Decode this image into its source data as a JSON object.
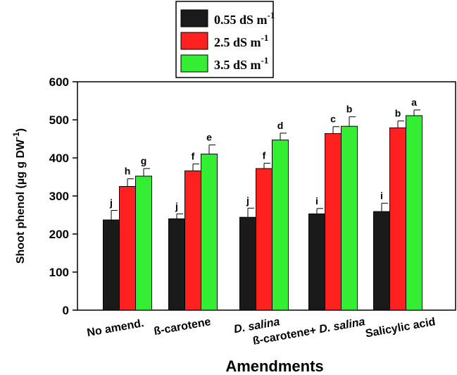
{
  "chart_data": {
    "type": "bar",
    "title": "",
    "xlabel": "Amendments",
    "ylabel": "Shoot phenol (µg  g DW",
    "ylabel_superscript": "-1",
    "ylim": [
      0,
      600
    ],
    "yticks": [
      "0",
      "100",
      "200",
      "300",
      "400",
      "500",
      "600"
    ],
    "legend_position": "top-center",
    "categories": [
      "No amend.",
      "ß-carotene",
      "D. salina",
      "ß-carotene+ D. salina",
      "Salicylic acid"
    ],
    "series": [
      {
        "name": "0.55 dS m",
        "name_superscript": "-1",
        "color": "#1a1a1a",
        "values": [
          237,
          240,
          244,
          253,
          259
        ],
        "errors": [
          25,
          13,
          24,
          14,
          22
        ],
        "letters": [
          "j",
          "j",
          "j",
          "i",
          "i"
        ]
      },
      {
        "name": "2.5 dS m",
        "name_superscript": "-1",
        "color": "#ff2020",
        "values": [
          325,
          366,
          372,
          464,
          479
        ],
        "errors": [
          20,
          18,
          14,
          18,
          18
        ],
        "letters": [
          "h",
          "f",
          "f",
          "c",
          "b"
        ]
      },
      {
        "name": "3.5 dS m",
        "name_superscript": "-1",
        "color": "#33ee33",
        "values": [
          352,
          410,
          447,
          483,
          511
        ],
        "errors": [
          20,
          24,
          18,
          25,
          15
        ],
        "letters": [
          "g",
          "e",
          "d",
          "b",
          "a"
        ]
      }
    ]
  }
}
